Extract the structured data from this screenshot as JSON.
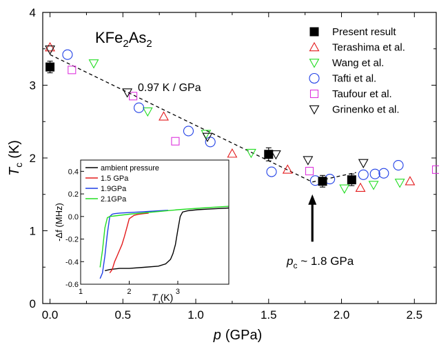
{
  "chart_data": [
    {
      "type": "scatter",
      "title_main": "KFe",
      "title_sub1": "2",
      "title_mid": "As",
      "title_sub2": "2",
      "xlabel": "p",
      "xlabel_unit": "(GPa)",
      "ylabel_main": "T",
      "ylabel_sub": "c",
      "ylabel_unit": "(K)",
      "xlim": [
        -0.05,
        2.65
      ],
      "ylim": [
        0,
        4
      ],
      "xticks": [
        "0.0",
        "0.5",
        "1.0",
        "1.5",
        "2.0",
        "2.5"
      ],
      "yticks": [
        "0",
        "1",
        "2",
        "3",
        "4"
      ],
      "xtick_values": [
        0,
        0.5,
        1.0,
        1.5,
        2.0,
        2.5
      ],
      "ytick_values": [
        0,
        1,
        2,
        3,
        4
      ],
      "series": [
        {
          "name": "Present result",
          "marker": "filled-square",
          "color": "#000000",
          "points": [
            {
              "x": 0.0,
              "y": 3.25,
              "err": 0.08
            },
            {
              "x": 1.5,
              "y": 2.05,
              "err": 0.09
            },
            {
              "x": 1.87,
              "y": 1.68,
              "err": 0.08
            },
            {
              "x": 2.07,
              "y": 1.7,
              "err": 0.08
            }
          ]
        },
        {
          "name": "Terashima et al.",
          "marker": "triangle-up",
          "color": "#e31a1c",
          "points": [
            {
              "x": 0.0,
              "y": 3.52
            },
            {
              "x": 0.78,
              "y": 2.57
            },
            {
              "x": 1.25,
              "y": 2.06
            },
            {
              "x": 1.63,
              "y": 1.84
            },
            {
              "x": 2.13,
              "y": 1.59
            },
            {
              "x": 2.47,
              "y": 1.68
            }
          ]
        },
        {
          "name": "Wang et al.",
          "marker": "triangle-down",
          "color": "#22dd22",
          "points": [
            {
              "x": 0.3,
              "y": 3.3
            },
            {
              "x": 0.67,
              "y": 2.64
            },
            {
              "x": 1.07,
              "y": 2.33
            },
            {
              "x": 1.38,
              "y": 2.07
            },
            {
              "x": 2.02,
              "y": 1.58
            },
            {
              "x": 2.22,
              "y": 1.63
            },
            {
              "x": 2.4,
              "y": 1.66
            }
          ]
        },
        {
          "name": "Tafti et al.",
          "marker": "circle",
          "color": "#1f3fe6",
          "points": [
            {
              "x": 0.12,
              "y": 3.42
            },
            {
              "x": 0.61,
              "y": 2.69
            },
            {
              "x": 0.95,
              "y": 2.37
            },
            {
              "x": 1.1,
              "y": 2.22
            },
            {
              "x": 1.52,
              "y": 1.81
            },
            {
              "x": 1.82,
              "y": 1.69
            },
            {
              "x": 1.92,
              "y": 1.71
            },
            {
              "x": 2.15,
              "y": 1.77
            },
            {
              "x": 2.23,
              "y": 1.78
            },
            {
              "x": 2.29,
              "y": 1.79
            },
            {
              "x": 2.39,
              "y": 1.9
            }
          ]
        },
        {
          "name": "Taufour et al.",
          "marker": "square",
          "color": "#dd33dd",
          "points": [
            {
              "x": 0.15,
              "y": 3.21
            },
            {
              "x": 0.57,
              "y": 2.85
            },
            {
              "x": 0.86,
              "y": 2.23
            },
            {
              "x": 1.78,
              "y": 1.82
            },
            {
              "x": 2.65,
              "y": 1.84
            }
          ]
        },
        {
          "name": "Grinenko et al.",
          "marker": "triangle-down",
          "color": "#000000",
          "points": [
            {
              "x": 0.0,
              "y": 3.49
            },
            {
              "x": 0.53,
              "y": 2.9
            },
            {
              "x": 1.08,
              "y": 2.29
            },
            {
              "x": 1.55,
              "y": 2.05
            },
            {
              "x": 1.77,
              "y": 1.97
            },
            {
              "x": 2.15,
              "y": 1.93
            }
          ]
        }
      ],
      "fit_lines": [
        {
          "x": [
            0.0,
            1.8
          ],
          "y": [
            3.42,
            1.67
          ]
        },
        {
          "x": [
            1.8,
            2.1
          ],
          "y": [
            1.67,
            1.8
          ]
        }
      ],
      "annotations": {
        "slope_label": "0.97 K / GPa",
        "pc_main": "p",
        "pc_sub": "c",
        "pc_rest": " ~ 1.8 GPa",
        "arrow": {
          "x": 1.8,
          "y_from": 0.85,
          "y_to": 1.5
        }
      },
      "legend_position": "top-right"
    },
    {
      "type": "line",
      "inset": true,
      "xlabel": "T",
      "xlabel_unit": "(K)",
      "ylabel": "-Δf (MHz)",
      "xlim": [
        1,
        4.05
      ],
      "ylim": [
        -0.6,
        0.5
      ],
      "xticks": [
        "1",
        "2",
        "3"
      ],
      "yticks": [
        "0.4",
        "0.2",
        "0.0",
        "-0.2",
        "-0.4",
        "-0.6"
      ],
      "xtick_values": [
        1,
        2,
        3
      ],
      "ytick_values": [
        0.4,
        0.2,
        0.0,
        -0.2,
        -0.4,
        -0.6
      ],
      "series": [
        {
          "name": "ambient pressure",
          "color": "#000000",
          "x": [
            1.5,
            1.6,
            1.8,
            2.0,
            2.3,
            2.6,
            2.75,
            2.85,
            2.9,
            2.95,
            3.0,
            3.05,
            3.1,
            3.2,
            3.4,
            3.6,
            3.8,
            4.05
          ],
          "y": [
            -0.48,
            -0.47,
            -0.46,
            -0.46,
            -0.45,
            -0.44,
            -0.42,
            -0.38,
            -0.33,
            -0.25,
            -0.12,
            0.0,
            0.04,
            0.05,
            0.06,
            0.065,
            0.07,
            0.075
          ]
        },
        {
          "name": "1.5 GPa",
          "color": "#e31a1c",
          "x": [
            1.6,
            1.65,
            1.7,
            1.75,
            1.8,
            1.85,
            1.9,
            1.95,
            2.0,
            2.1,
            2.2,
            2.3,
            2.4
          ],
          "y": [
            -0.5,
            -0.47,
            -0.4,
            -0.35,
            -0.3,
            -0.25,
            -0.18,
            -0.1,
            -0.02,
            0.01,
            0.02,
            0.025,
            0.03
          ]
        },
        {
          "name": "1.9GPa",
          "color": "#1f3fe6",
          "x": [
            1.4,
            1.45,
            1.5,
            1.55,
            1.6,
            1.65,
            1.7,
            1.8,
            2.0,
            2.2,
            2.4,
            2.6,
            2.8
          ],
          "y": [
            -0.55,
            -0.5,
            -0.35,
            -0.15,
            0.0,
            0.02,
            0.025,
            0.03,
            0.035,
            0.04,
            0.045,
            0.05,
            0.055
          ]
        },
        {
          "name": "2.1GPa",
          "color": "#22dd22",
          "x": [
            1.4,
            1.45,
            1.5,
            1.55,
            1.6,
            1.7,
            2.0,
            2.5,
            3.0,
            3.5,
            4.05
          ],
          "y": [
            -0.45,
            -0.3,
            -0.1,
            -0.01,
            0.0,
            0.005,
            0.02,
            0.04,
            0.06,
            0.075,
            0.09
          ]
        }
      ]
    }
  ]
}
